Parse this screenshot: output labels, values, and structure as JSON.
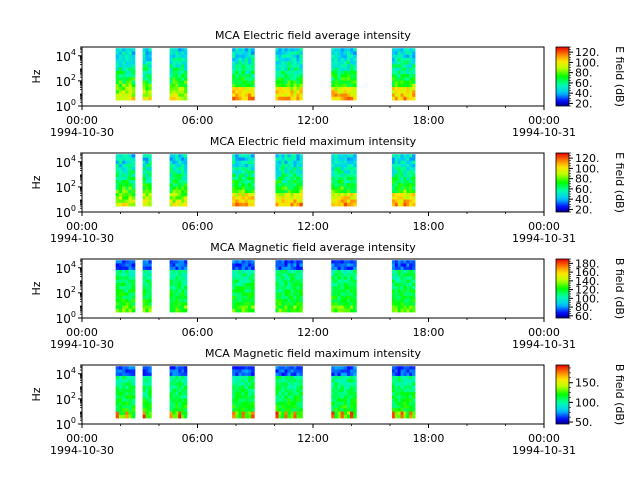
{
  "figure": {
    "background": "#ffffff"
  },
  "chart_data": [
    {
      "type": "heatmap",
      "title": "MCA  Electric field average intensity",
      "ylabel": "Hz",
      "y_scale": "log",
      "y_ticks": [
        {
          "base": "10",
          "exp": "0"
        },
        {
          "base": "10",
          "exp": "2"
        },
        {
          "base": "10",
          "exp": "4"
        }
      ],
      "x_ticks": [
        "00:00",
        "06:00",
        "12:00",
        "18:00",
        "00:00"
      ],
      "x_dates": [
        "1994-10-30",
        "1994-10-31"
      ],
      "xlim": [
        "1994-10-30 00:00",
        "1994-10-31 00:00"
      ],
      "ylim": [
        1,
        50000
      ],
      "data_hours": [
        [
          1.75,
          2.75
        ],
        [
          3.15,
          3.6
        ],
        [
          4.55,
          5.45
        ],
        [
          7.8,
          8.95
        ],
        [
          10.05,
          11.45
        ],
        [
          12.95,
          14.25
        ],
        [
          16.1,
          17.3
        ]
      ],
      "colorbar": {
        "label": "E field (dB)",
        "range": [
          15,
          130
        ],
        "ticks": [
          "20.",
          "40.",
          "60.",
          "80.",
          "100.",
          "120."
        ]
      },
      "colormap": "rainbow"
    },
    {
      "type": "heatmap",
      "title": "MCA  Electric field maximum intensity",
      "ylabel": "Hz",
      "y_scale": "log",
      "y_ticks": [
        {
          "base": "10",
          "exp": "0"
        },
        {
          "base": "10",
          "exp": "2"
        },
        {
          "base": "10",
          "exp": "4"
        }
      ],
      "x_ticks": [
        "00:00",
        "06:00",
        "12:00",
        "18:00",
        "00:00"
      ],
      "x_dates": [
        "1994-10-30",
        "1994-10-31"
      ],
      "xlim": [
        "1994-10-30 00:00",
        "1994-10-31 00:00"
      ],
      "ylim": [
        1,
        50000
      ],
      "data_hours": [
        [
          1.75,
          2.75
        ],
        [
          3.15,
          3.6
        ],
        [
          4.55,
          5.45
        ],
        [
          7.8,
          8.95
        ],
        [
          10.05,
          11.45
        ],
        [
          12.95,
          14.25
        ],
        [
          16.1,
          17.3
        ]
      ],
      "colorbar": {
        "label": "E field (dB)",
        "range": [
          15,
          130
        ],
        "ticks": [
          "20.",
          "40.",
          "60.",
          "80.",
          "100.",
          "120."
        ]
      },
      "colormap": "rainbow"
    },
    {
      "type": "heatmap",
      "title": "MCA  Magnetic field average intensity",
      "ylabel": "Hz",
      "y_scale": "log",
      "y_ticks": [
        {
          "base": "10",
          "exp": "0"
        },
        {
          "base": "10",
          "exp": "2"
        },
        {
          "base": "10",
          "exp": "4"
        }
      ],
      "x_ticks": [
        "00:00",
        "06:00",
        "12:00",
        "18:00",
        "00:00"
      ],
      "x_dates": [
        "1994-10-30",
        "1994-10-31"
      ],
      "xlim": [
        "1994-10-30 00:00",
        "1994-10-31 00:00"
      ],
      "ylim": [
        1,
        50000
      ],
      "data_hours": [
        [
          1.75,
          2.75
        ],
        [
          3.15,
          3.6
        ],
        [
          4.55,
          5.45
        ],
        [
          7.8,
          8.95
        ],
        [
          10.05,
          11.45
        ],
        [
          12.95,
          14.25
        ],
        [
          16.1,
          17.3
        ]
      ],
      "colorbar": {
        "label": "B field (dB)",
        "range": [
          55,
          190
        ],
        "ticks": [
          "60.",
          "80.",
          "100.",
          "120.",
          "140.",
          "160.",
          "180."
        ]
      },
      "colormap": "rainbow"
    },
    {
      "type": "heatmap",
      "title": "MCA  Magnetic field maximum intensity",
      "ylabel": "Hz",
      "y_scale": "log",
      "y_ticks": [
        {
          "base": "10",
          "exp": "0"
        },
        {
          "base": "10",
          "exp": "2"
        },
        {
          "base": "10",
          "exp": "4"
        }
      ],
      "x_ticks": [
        "00:00",
        "06:00",
        "12:00",
        "18:00",
        "00:00"
      ],
      "x_dates": [
        "1994-10-30",
        "1994-10-31"
      ],
      "xlim": [
        "1994-10-30 00:00",
        "1994-10-31 00:00"
      ],
      "ylim": [
        1,
        50000
      ],
      "data_hours": [
        [
          1.75,
          2.75
        ],
        [
          3.15,
          3.6
        ],
        [
          4.55,
          5.45
        ],
        [
          7.8,
          8.95
        ],
        [
          10.05,
          11.45
        ],
        [
          12.95,
          14.25
        ],
        [
          16.1,
          17.3
        ]
      ],
      "colorbar": {
        "label": "B field (dB)",
        "range": [
          45,
          195
        ],
        "ticks": [
          "50.",
          "100.",
          "150."
        ]
      },
      "colormap": "rainbow"
    }
  ]
}
